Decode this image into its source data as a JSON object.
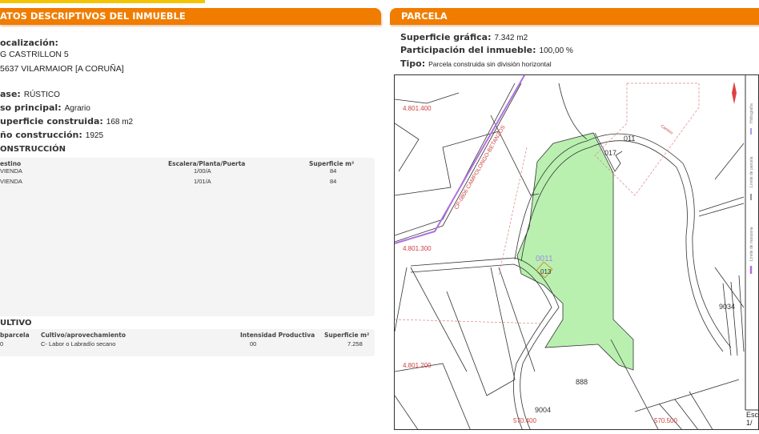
{
  "left": {
    "header": "ATOS DESCRIPTIVOS DEL INMUEBLE",
    "localizacion_label": "ocalización:",
    "address_line1": "G CASTRILLON 5",
    "address_line2": "5637 VILARMAIOR [A CORUÑA]",
    "clase_label": "ase:",
    "clase_value": "RÚSTICO",
    "uso_label": "so principal:",
    "uso_value": "Agrario",
    "superficie_label": "uperficie construida:",
    "superficie_value": "168 m2",
    "anio_label": "ño construcción:",
    "anio_value": "1925",
    "construccion": {
      "title": "ONSTRUCCIÓN",
      "headers": [
        "estino",
        "Escalera/Planta/Puerta",
        "Superficie m²"
      ],
      "rows": [
        [
          "VIENDA",
          "1/00/A",
          "84"
        ],
        [
          "VIENDA",
          "1/01/A",
          "84"
        ]
      ]
    },
    "cultivo": {
      "title": "ULTIVO",
      "headers": [
        "bparcela",
        "Cultivo/aprovechamiento",
        "Intensidad Productiva",
        "Superficie m²"
      ],
      "rows": [
        [
          "0",
          "C- Labor o Labradío secano",
          "00",
          "7.258"
        ]
      ]
    }
  },
  "right": {
    "header": "PARCELA",
    "superficie_grafica_label": "Superficie gráfica:",
    "superficie_grafica_value": "7.342 m2",
    "participacion_label": "Participación del inmueble:",
    "participacion_value": "100,00 %",
    "tipo_label": "Tipo:",
    "tipo_value": "Parcela construida sin división horizontal",
    "map": {
      "coord_labels": [
        "4.801.400",
        "4.801.300",
        "4.801.200",
        "570.400",
        "570.500"
      ],
      "road_label": "CP-0806 CAMPOLONGO-BETANZOS",
      "parcel_labels": [
        "011",
        "017",
        "0011",
        "013",
        "9034",
        "888",
        "9004"
      ],
      "small_label": "Camino",
      "legend": [
        "Hidrografía",
        "Límite de parcela",
        "Límite de manzana"
      ],
      "scale_label": "Esc",
      "scale_value": "1/",
      "parcel_fill": "#b9f0b0",
      "accent": "#f07c00"
    }
  }
}
